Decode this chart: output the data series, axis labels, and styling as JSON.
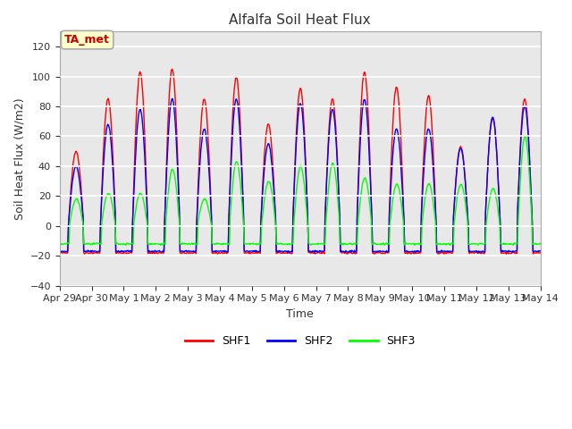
{
  "title": "Alfalfa Soil Heat Flux",
  "xlabel": "Time",
  "ylabel": "Soil Heat Flux (W/m2)",
  "ylim": [
    -40,
    130
  ],
  "yticks": [
    -40,
    -20,
    0,
    20,
    40,
    60,
    80,
    100,
    120
  ],
  "fig_bg_color": "#ffffff",
  "plot_bg_color": "#e8e8e8",
  "grid_color": "#ffffff",
  "series": [
    "SHF1",
    "SHF2",
    "SHF3"
  ],
  "colors": [
    "red",
    "blue",
    "lime"
  ],
  "annotation_text": "TA_met",
  "annotation_color": "#cc0000",
  "annotation_bg": "#ffffcc",
  "annotation_edge": "#aaaaaa",
  "x_tick_labels": [
    "Apr 29",
    "Apr 30",
    "May 1",
    "May 2",
    "May 3",
    "May 4",
    "May 5",
    "May 6",
    "May 7",
    "May 8",
    "May 9",
    "May 10",
    "May 11",
    "May 12",
    "May 13",
    "May 14"
  ],
  "title_fontsize": 11,
  "label_fontsize": 9,
  "tick_fontsize": 8,
  "legend_fontsize": 9,
  "shf1_amps": [
    50,
    85,
    103,
    105,
    85,
    100,
    68,
    92,
    85,
    103,
    93,
    87,
    53,
    72,
    85
  ],
  "shf2_amps": [
    40,
    68,
    78,
    85,
    65,
    85,
    55,
    82,
    78,
    85,
    65,
    65,
    52,
    73,
    80
  ],
  "shf3_amps": [
    18,
    22,
    22,
    38,
    18,
    43,
    30,
    40,
    42,
    32,
    28,
    28,
    28,
    25,
    60
  ]
}
